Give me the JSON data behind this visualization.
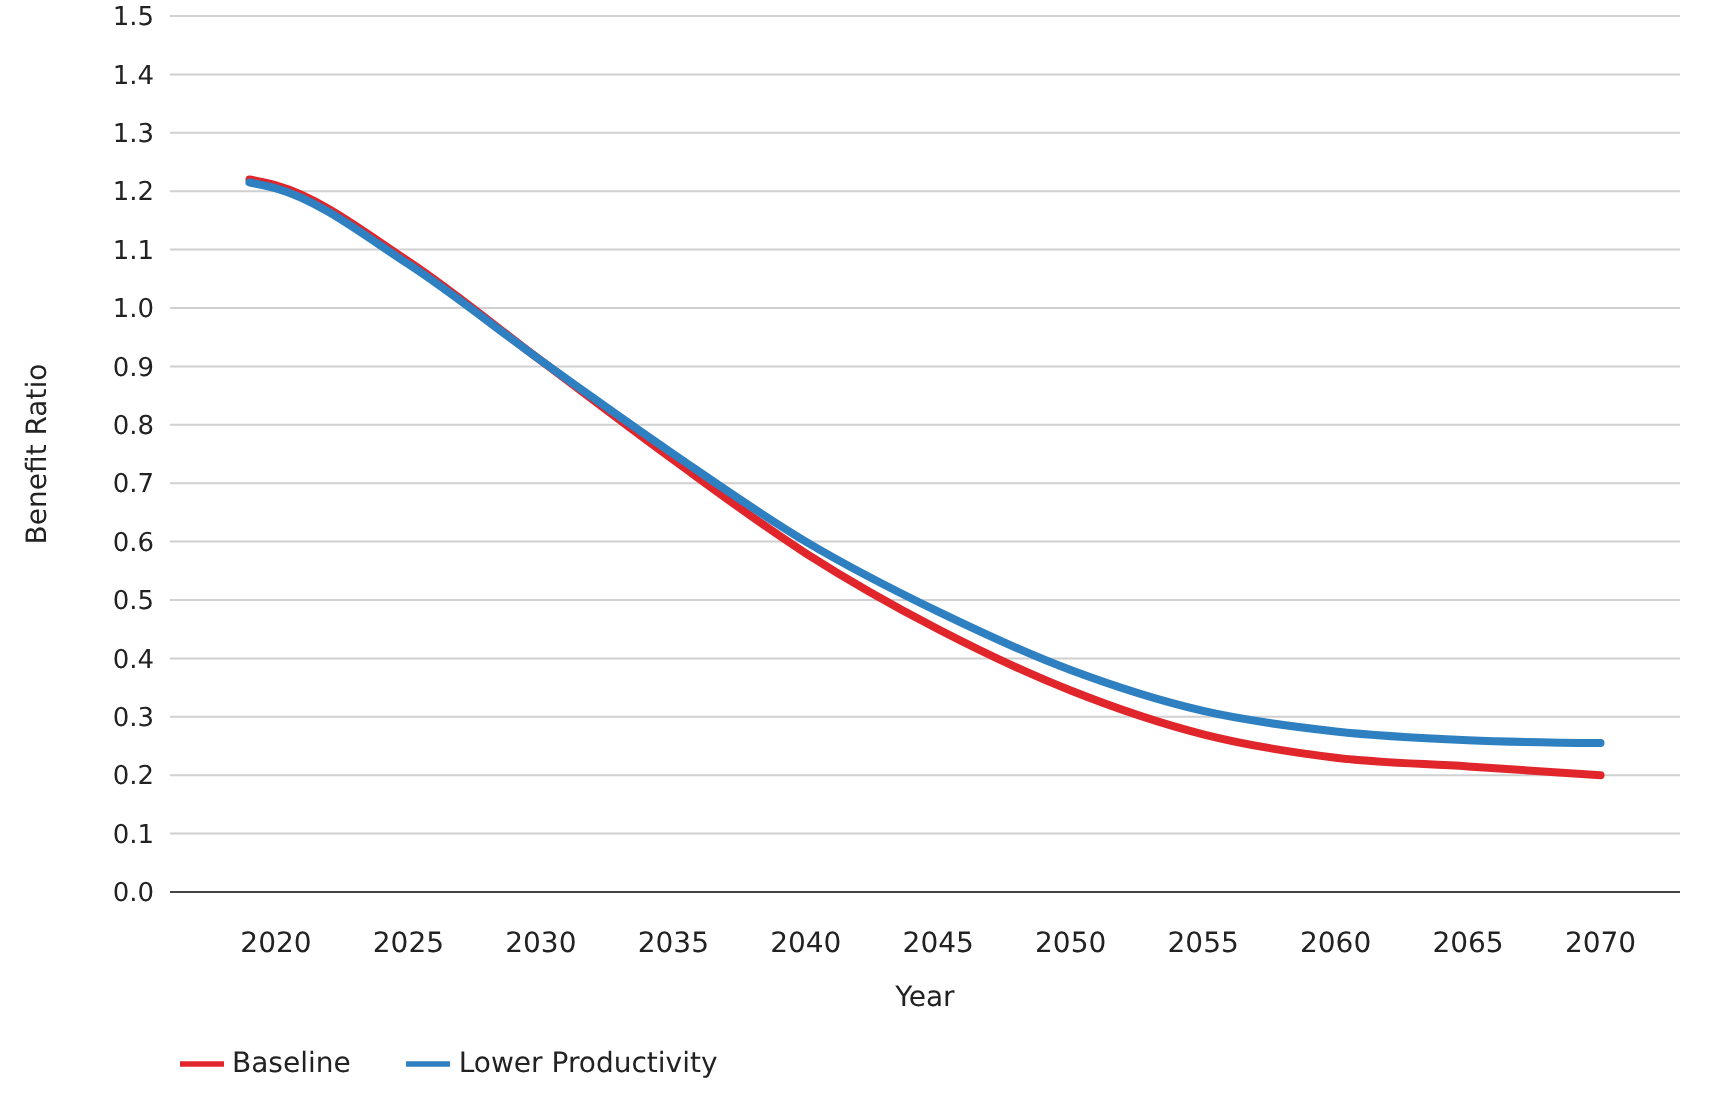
{
  "chart_data": {
    "type": "line",
    "xlabel": "Year",
    "ylabel": "Benefit Ratio",
    "xlim": [
      2016,
      2073
    ],
    "xticks": [
      2020,
      2025,
      2030,
      2035,
      2040,
      2045,
      2050,
      2055,
      2060,
      2065,
      2070
    ],
    "ylim": [
      0,
      1.5
    ],
    "yticks": [
      {
        "value": 0,
        "label": "0.0"
      },
      0.1,
      0.2,
      0.3,
      0.4,
      0.5,
      0.6,
      0.7,
      0.8,
      0.9,
      {
        "value": 1,
        "label": "1.0"
      },
      1.1,
      1.2,
      1.3,
      1.4,
      1.5
    ],
    "grid": "y",
    "legend": "bottom left",
    "marker": "none",
    "line_style": "solid",
    "series": [
      {
        "name": "Baseline",
        "color": "#e0262b",
        "x": [
          2019,
          2020,
          2025,
          2030,
          2035,
          2040,
          2045,
          2050,
          2055,
          2060,
          2065,
          2070
        ],
        "values": [
          1.22,
          1.21,
          1.08,
          0.91,
          0.74,
          0.58,
          0.45,
          0.345,
          0.27,
          0.23,
          0.215,
          0.2
        ]
      },
      {
        "name": "Lower Productivity",
        "color": "#2f80c0",
        "x": [
          2019,
          2020,
          2025,
          2030,
          2035,
          2040,
          2045,
          2050,
          2055,
          2060,
          2065,
          2070
        ],
        "values": [
          1.215,
          1.205,
          1.075,
          0.91,
          0.75,
          0.6,
          0.48,
          0.38,
          0.31,
          0.275,
          0.26,
          0.255
        ]
      }
    ]
  }
}
